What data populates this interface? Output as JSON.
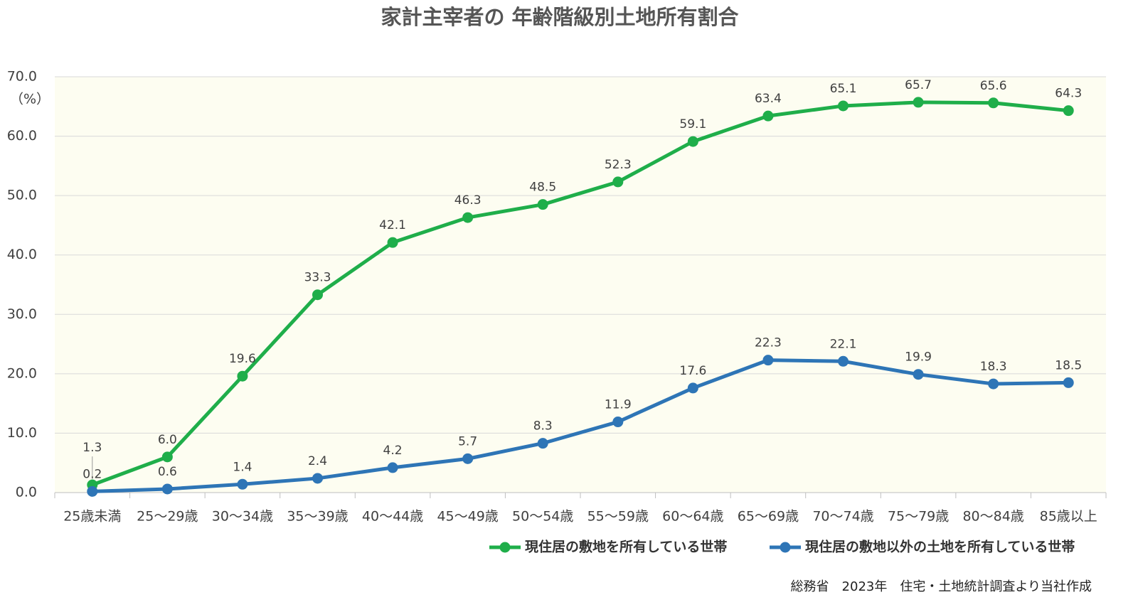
{
  "chart_data": {
    "type": "line",
    "title": "家計主宰者の 年齢階級別土地所有割合",
    "y_axis_label": "（%）",
    "source": "総務省　2023年　住宅・土地統計調査より当社作成",
    "categories": [
      "25歳未満",
      "25～29歳",
      "30～34歳",
      "35～39歳",
      "40～44歳",
      "45～49歳",
      "50～54歳",
      "55～59歳",
      "60～64歳",
      "65～69歳",
      "70～74歳",
      "75～79歳",
      "80～84歳",
      "85歳以上"
    ],
    "series": [
      {
        "name": "現住居の敷地を所有している世帯",
        "color": "#1fae4a",
        "values": [
          1.3,
          6.0,
          19.6,
          33.3,
          42.1,
          46.3,
          48.5,
          52.3,
          59.1,
          63.4,
          65.1,
          65.7,
          65.6,
          64.3
        ],
        "value_labels": [
          "1.3",
          "6.0",
          "19.6",
          "33.3",
          "42.1",
          "46.3",
          "48.5",
          "52.3",
          "59.1",
          "63.4",
          "65.1",
          "65.7",
          "65.6",
          "64.3"
        ]
      },
      {
        "name": "現住居の敷地以外の土地を所有している世帯",
        "color": "#2e75b6",
        "values": [
          0.2,
          0.6,
          1.4,
          2.4,
          4.2,
          5.7,
          8.3,
          11.9,
          17.6,
          22.3,
          22.1,
          19.9,
          18.3,
          18.5
        ],
        "value_labels": [
          "0.2",
          "0.6",
          "1.4",
          "2.4",
          "4.2",
          "5.7",
          "8.3",
          "11.9",
          "17.6",
          "22.3",
          "22.1",
          "19.9",
          "18.3",
          "18.5"
        ]
      }
    ],
    "ylim": [
      0,
      70
    ],
    "yticks": [
      {
        "value": 0,
        "label": "0.0"
      },
      {
        "value": 10,
        "label": "10.0"
      },
      {
        "value": 20,
        "label": "20.0"
      },
      {
        "value": 30,
        "label": "30.0"
      },
      {
        "value": 40,
        "label": "40.0"
      },
      {
        "value": 50,
        "label": "50.0"
      },
      {
        "value": 60,
        "label": "60.0"
      },
      {
        "value": 70,
        "label": "70.0"
      }
    ],
    "grid": true
  }
}
